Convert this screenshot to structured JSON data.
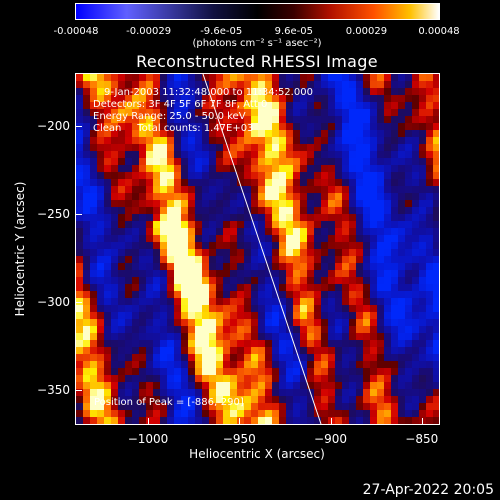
{
  "colorbar": {
    "ticks": [
      "-0.00048",
      "-0.00029",
      "-9.6e-05",
      "9.6e-05",
      "0.00029",
      "0.00048"
    ],
    "unit_label": "(photons cm⁻² s⁻¹ asec⁻²)",
    "range": [
      -0.00048,
      0.00048
    ]
  },
  "chart_data": {
    "type": "heatmap",
    "title": "Reconstructed RHESSI Image",
    "xlabel": "Heliocentric X (arcsec)",
    "ylabel": "Heliocentric Y (arcsec)",
    "xlim": [
      -1040,
      -840
    ],
    "ylim": [
      -370,
      -170
    ],
    "xticks": [
      -1000,
      -950,
      -900,
      -850
    ],
    "yticks": [
      -200,
      -250,
      -300,
      -350
    ],
    "xtick_labels": [
      "−1000",
      "−950",
      "−900",
      "−850"
    ],
    "ytick_labels": [
      "−200",
      "−250",
      "−300",
      "−350"
    ],
    "peak": [
      -886,
      -290
    ],
    "colormap": "blue-black-red-yellow-white"
  },
  "info": {
    "line1": "9-Jan-2003 11:32:48.000 to 11:34:52.000",
    "line2": "Detectors: 3F 4F 5F 6F 7F 8F, Att 0",
    "line3": "Energy Range: 25.0 - 50.0 keV",
    "line4": "Clean     Total counts: 1.47E+03",
    "peak_text": "Position of Peak = [-886,-290]"
  },
  "footer": {
    "timestamp": "27-Apr-2022 20:05"
  }
}
